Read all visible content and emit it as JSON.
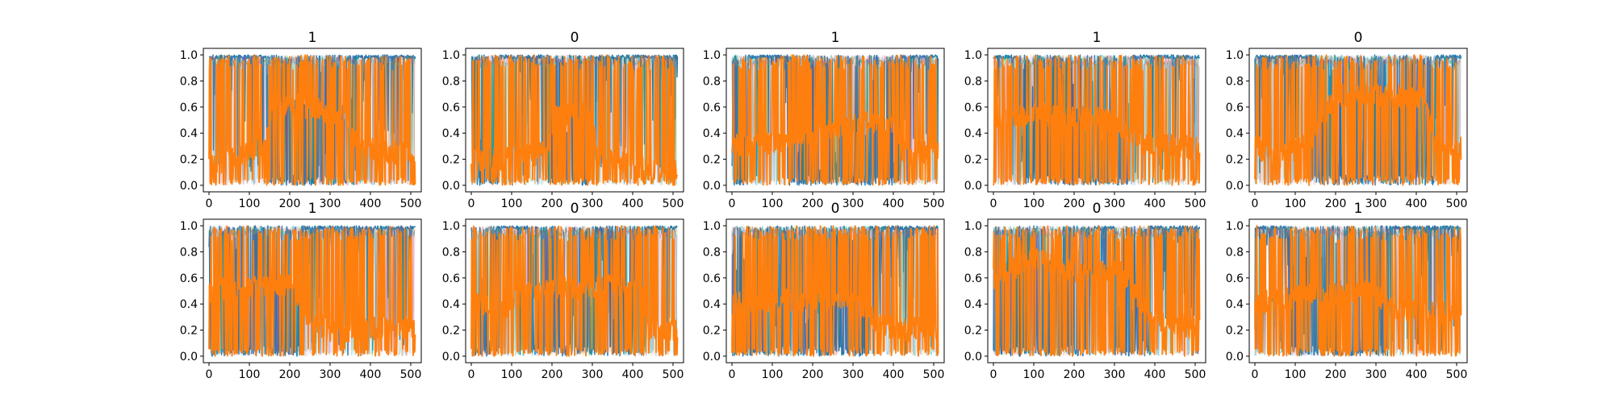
{
  "chart_data": [
    {
      "type": "line",
      "title": "1",
      "xlim": [
        -14,
        526
      ],
      "ylim": [
        -0.05,
        1.05
      ],
      "xticks": [
        "0",
        "100",
        "200",
        "300",
        "400",
        "500"
      ],
      "yticks": [
        "0.0",
        "0.2",
        "0.4",
        "0.6",
        "0.8",
        "1.0"
      ],
      "blue_regions": [
        [
          0,
          150
        ],
        [
          360,
          512
        ]
      ],
      "orange_levels": [
        [
          0,
          0.16
        ],
        [
          60,
          0.2
        ],
        [
          140,
          0.3
        ],
        [
          160,
          0.62
        ],
        [
          260,
          0.6
        ],
        [
          340,
          0.52
        ],
        [
          370,
          0.3
        ],
        [
          420,
          0.26
        ],
        [
          512,
          0.24
        ]
      ]
    },
    {
      "type": "line",
      "title": "0",
      "xlim": [
        -14,
        526
      ],
      "ylim": [
        -0.05,
        1.05
      ],
      "xticks": [
        "0",
        "100",
        "200",
        "300",
        "400",
        "500"
      ],
      "yticks": [
        "0.0",
        "0.2",
        "0.4",
        "0.6",
        "0.8",
        "1.0"
      ],
      "blue_regions": [
        [
          70,
          190
        ],
        [
          290,
          512
        ]
      ],
      "orange_levels": [
        [
          0,
          0.2
        ],
        [
          70,
          0.2
        ],
        [
          190,
          0.25
        ],
        [
          210,
          0.55
        ],
        [
          290,
          0.55
        ],
        [
          320,
          0.2
        ],
        [
          400,
          0.15
        ],
        [
          512,
          0.12
        ]
      ]
    },
    {
      "type": "line",
      "title": "1",
      "xlim": [
        -14,
        526
      ],
      "ylim": [
        -0.05,
        1.05
      ],
      "xticks": [
        "0",
        "100",
        "200",
        "300",
        "400",
        "500"
      ],
      "yticks": [
        "0.0",
        "0.2",
        "0.4",
        "0.6",
        "0.8",
        "1.0"
      ],
      "blue_regions": [
        [
          40,
          140
        ],
        [
          420,
          512
        ]
      ],
      "orange_levels": [
        [
          0,
          0.3
        ],
        [
          140,
          0.35
        ],
        [
          250,
          0.45
        ],
        [
          410,
          0.5
        ],
        [
          420,
          0.25
        ],
        [
          512,
          0.25
        ]
      ]
    },
    {
      "type": "line",
      "title": "1",
      "xlim": [
        -14,
        526
      ],
      "ylim": [
        -0.05,
        1.05
      ],
      "xticks": [
        "0",
        "100",
        "200",
        "300",
        "400",
        "500"
      ],
      "yticks": [
        "0.0",
        "0.2",
        "0.4",
        "0.6",
        "0.8",
        "1.0"
      ],
      "blue_regions": [
        [
          0,
          60
        ],
        [
          340,
          512
        ]
      ],
      "orange_levels": [
        [
          0,
          0.5
        ],
        [
          100,
          0.55
        ],
        [
          300,
          0.5
        ],
        [
          380,
          0.3
        ],
        [
          460,
          0.3
        ],
        [
          512,
          0.28
        ]
      ]
    },
    {
      "type": "line",
      "title": "0",
      "xlim": [
        -14,
        526
      ],
      "ylim": [
        -0.05,
        1.05
      ],
      "xticks": [
        "0",
        "100",
        "200",
        "300",
        "400",
        "500"
      ],
      "yticks": [
        "0.0",
        "0.2",
        "0.4",
        "0.6",
        "0.8",
        "1.0"
      ],
      "blue_regions": [
        [
          0,
          140
        ],
        [
          450,
          512
        ]
      ],
      "orange_levels": [
        [
          0,
          0.3
        ],
        [
          60,
          0.2
        ],
        [
          140,
          0.35
        ],
        [
          200,
          0.7
        ],
        [
          420,
          0.68
        ],
        [
          450,
          0.3
        ],
        [
          512,
          0.28
        ]
      ]
    },
    {
      "type": "line",
      "title": "1",
      "xlim": [
        -14,
        526
      ],
      "ylim": [
        -0.05,
        1.05
      ],
      "xticks": [
        "0",
        "100",
        "200",
        "300",
        "400",
        "500"
      ],
      "yticks": [
        "0.0",
        "0.2",
        "0.4",
        "0.6",
        "0.8",
        "1.0"
      ],
      "blue_regions": [
        [
          230,
          512
        ]
      ],
      "orange_levels": [
        [
          0,
          0.5
        ],
        [
          200,
          0.55
        ],
        [
          240,
          0.3
        ],
        [
          300,
          0.2
        ],
        [
          400,
          0.2
        ],
        [
          460,
          0.25
        ],
        [
          512,
          0.18
        ]
      ]
    },
    {
      "type": "line",
      "title": "0",
      "xlim": [
        -14,
        526
      ],
      "ylim": [
        -0.05,
        1.05
      ],
      "xticks": [
        "0",
        "100",
        "200",
        "300",
        "400",
        "500"
      ],
      "yticks": [
        "0.0",
        "0.2",
        "0.4",
        "0.6",
        "0.8",
        "1.0"
      ],
      "blue_regions": [
        [
          70,
          140
        ],
        [
          430,
          512
        ]
      ],
      "orange_levels": [
        [
          0,
          0.45
        ],
        [
          70,
          0.35
        ],
        [
          140,
          0.5
        ],
        [
          420,
          0.55
        ],
        [
          440,
          0.2
        ],
        [
          512,
          0.2
        ]
      ]
    },
    {
      "type": "line",
      "title": "0",
      "xlim": [
        -14,
        526
      ],
      "ylim": [
        -0.05,
        1.05
      ],
      "xticks": [
        "0",
        "100",
        "200",
        "300",
        "400",
        "500"
      ],
      "yticks": [
        "0.0",
        "0.2",
        "0.4",
        "0.6",
        "0.8",
        "1.0"
      ],
      "blue_regions": [
        [
          340,
          512
        ]
      ],
      "orange_levels": [
        [
          0,
          0.4
        ],
        [
          300,
          0.45
        ],
        [
          360,
          0.25
        ],
        [
          420,
          0.2
        ],
        [
          512,
          0.22
        ]
      ]
    },
    {
      "type": "line",
      "title": "0",
      "xlim": [
        -14,
        526
      ],
      "ylim": [
        -0.05,
        1.05
      ],
      "xticks": [
        "0",
        "100",
        "200",
        "300",
        "400",
        "500"
      ],
      "yticks": [
        "0.0",
        "0.2",
        "0.4",
        "0.6",
        "0.8",
        "1.0"
      ],
      "blue_regions": [
        [
          250,
          300
        ],
        [
          390,
          512
        ]
      ],
      "orange_levels": [
        [
          0,
          0.6
        ],
        [
          100,
          0.75
        ],
        [
          250,
          0.6
        ],
        [
          300,
          0.7
        ],
        [
          390,
          0.3
        ],
        [
          512,
          0.2
        ]
      ]
    },
    {
      "type": "line",
      "title": "1",
      "xlim": [
        -14,
        526
      ],
      "ylim": [
        -0.05,
        1.05
      ],
      "xticks": [
        "0",
        "100",
        "200",
        "300",
        "400",
        "500"
      ],
      "yticks": [
        "0.0",
        "0.2",
        "0.4",
        "0.6",
        "0.8",
        "1.0"
      ],
      "blue_regions": [
        [
          0,
          80
        ],
        [
          330,
          512
        ]
      ],
      "orange_levels": [
        [
          0,
          0.4
        ],
        [
          80,
          0.45
        ],
        [
          300,
          0.5
        ],
        [
          340,
          0.35
        ],
        [
          512,
          0.33
        ]
      ]
    }
  ]
}
